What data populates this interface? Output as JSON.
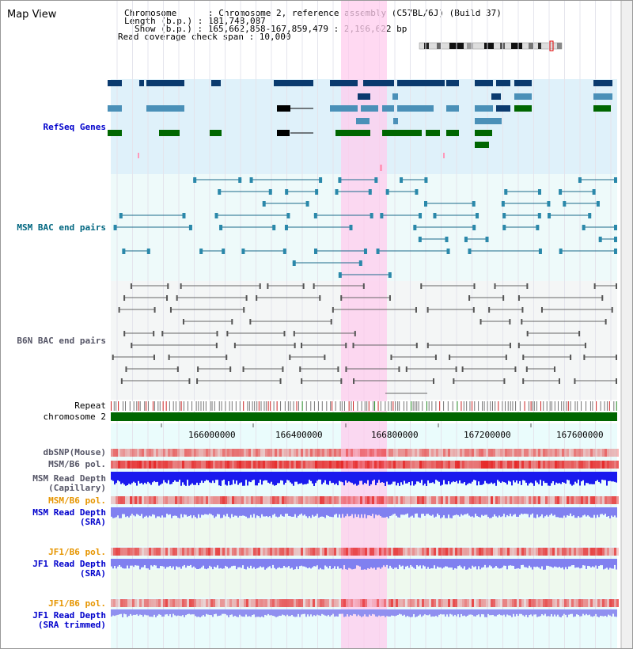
{
  "view_title": "Map View",
  "info": {
    "line1": "Chromosome      : Chromosome 2, reference assembly (C57BL/6J) (Build 37)",
    "line2": "Length (b.p.) : 181,748,087",
    "line3": "Show (b.p.) : 165,662,858-167,859,479 : 2,196,622 bp",
    "line4": "Read coverage check span : 10,000"
  },
  "tracks": {
    "refseq": "RefSeq Genes",
    "msm_bac": "MSM BAC end pairs",
    "b6n_bac": "B6N BAC end pairs",
    "repeat": "Repeat",
    "chromosome": "chromosome 2",
    "dbsnp": "dbSNP(Mouse)",
    "msm_b6_pol": "MSM/B6 pol.",
    "msm_read_depth_cap_1": "MSM Read Depth",
    "msm_read_depth_cap_2": "(Capillary)",
    "msm_b6_pol_2": "MSM/B6 pol.",
    "msm_read_depth_sra_1": "MSM Read Depth",
    "msm_read_depth_sra_2": "(SRA)",
    "jf1_b6_pol": "JF1/B6 pol.",
    "jf1_read_depth_sra_1": "JF1 Read Depth",
    "jf1_read_depth_sra_2": "(SRA)",
    "jf1_b6_pol_2": "JF1/B6 pol.",
    "jf1_read_depth_trim_1": "JF1 Read Depth",
    "jf1_read_depth_trim_2": "(SRA trimmed)"
  },
  "ruler": {
    "ticks": [
      "166000000",
      "166400000",
      "166800000",
      "167200000",
      "167600000"
    ]
  },
  "colors": {
    "label_blue": "#0000cc",
    "label_teal": "#006680",
    "label_gray": "#555566",
    "label_orange": "#e69500",
    "highlight": "#ffccee",
    "gene_dark": "#0a3a6e",
    "gene_mid": "#4a90b8",
    "gene_green": "#006600"
  }
}
